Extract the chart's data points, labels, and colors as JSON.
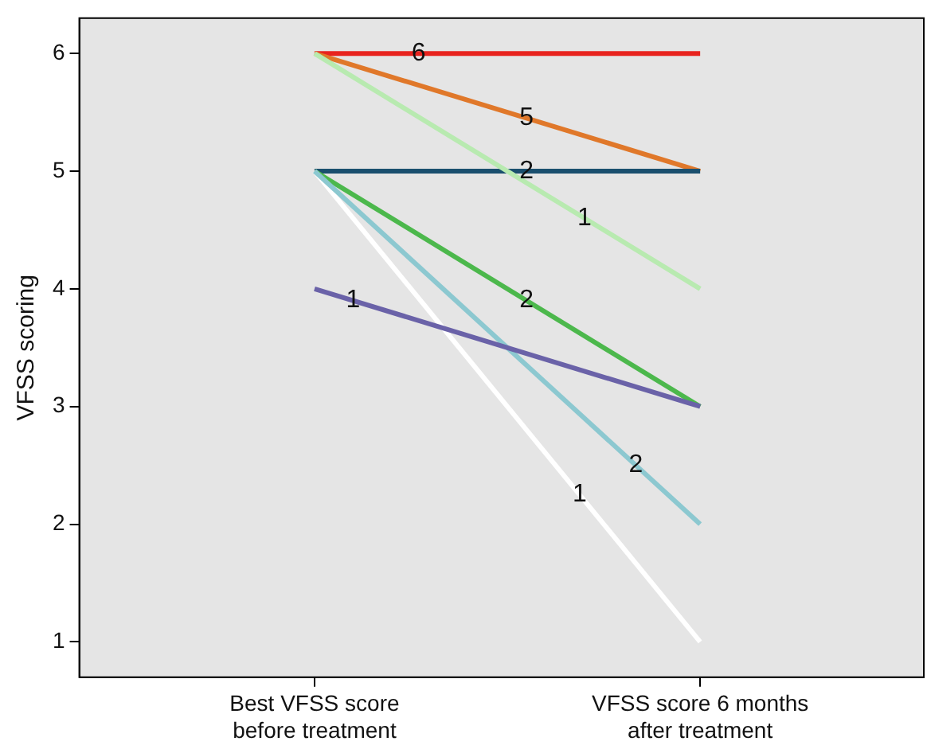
{
  "chart_data": {
    "type": "line",
    "ylabel": "VFSS scoring",
    "categories": [
      "Best VFSS score before treatment",
      "VFSS score 6 months after treatment"
    ],
    "series": [
      {
        "color": "#6a62a8",
        "values": [
          4,
          3
        ]
      },
      {
        "color": "#8cc8d0",
        "values": [
          5,
          2
        ]
      },
      {
        "color": "#ffffff",
        "values": [
          5,
          1
        ]
      },
      {
        "color": "#4cb84c",
        "values": [
          5,
          3
        ]
      },
      {
        "color": "#b8eab0",
        "values": [
          6,
          4
        ]
      },
      {
        "color": "#1a4f6e",
        "values": [
          5,
          5
        ]
      },
      {
        "color": "#e0782a",
        "values": [
          6,
          5
        ]
      },
      {
        "color": "#e8231e",
        "values": [
          6,
          6
        ]
      }
    ],
    "annotations": [
      {
        "text": "1",
        "y": 3.9
      },
      {
        "text": "2",
        "y": 2.5
      },
      {
        "text": "1",
        "y": 2.25
      },
      {
        "text": "2",
        "y": 3.9
      },
      {
        "text": "1",
        "y": 4.6
      },
      {
        "text": "2",
        "y": 5
      },
      {
        "text": "5",
        "y": 5.45
      },
      {
        "text": "6",
        "y": 6
      }
    ],
    "marker": "none",
    "ylim": [
      0.7,
      6.3
    ],
    "yticks": [
      1,
      2,
      3,
      4,
      5,
      6
    ]
  }
}
